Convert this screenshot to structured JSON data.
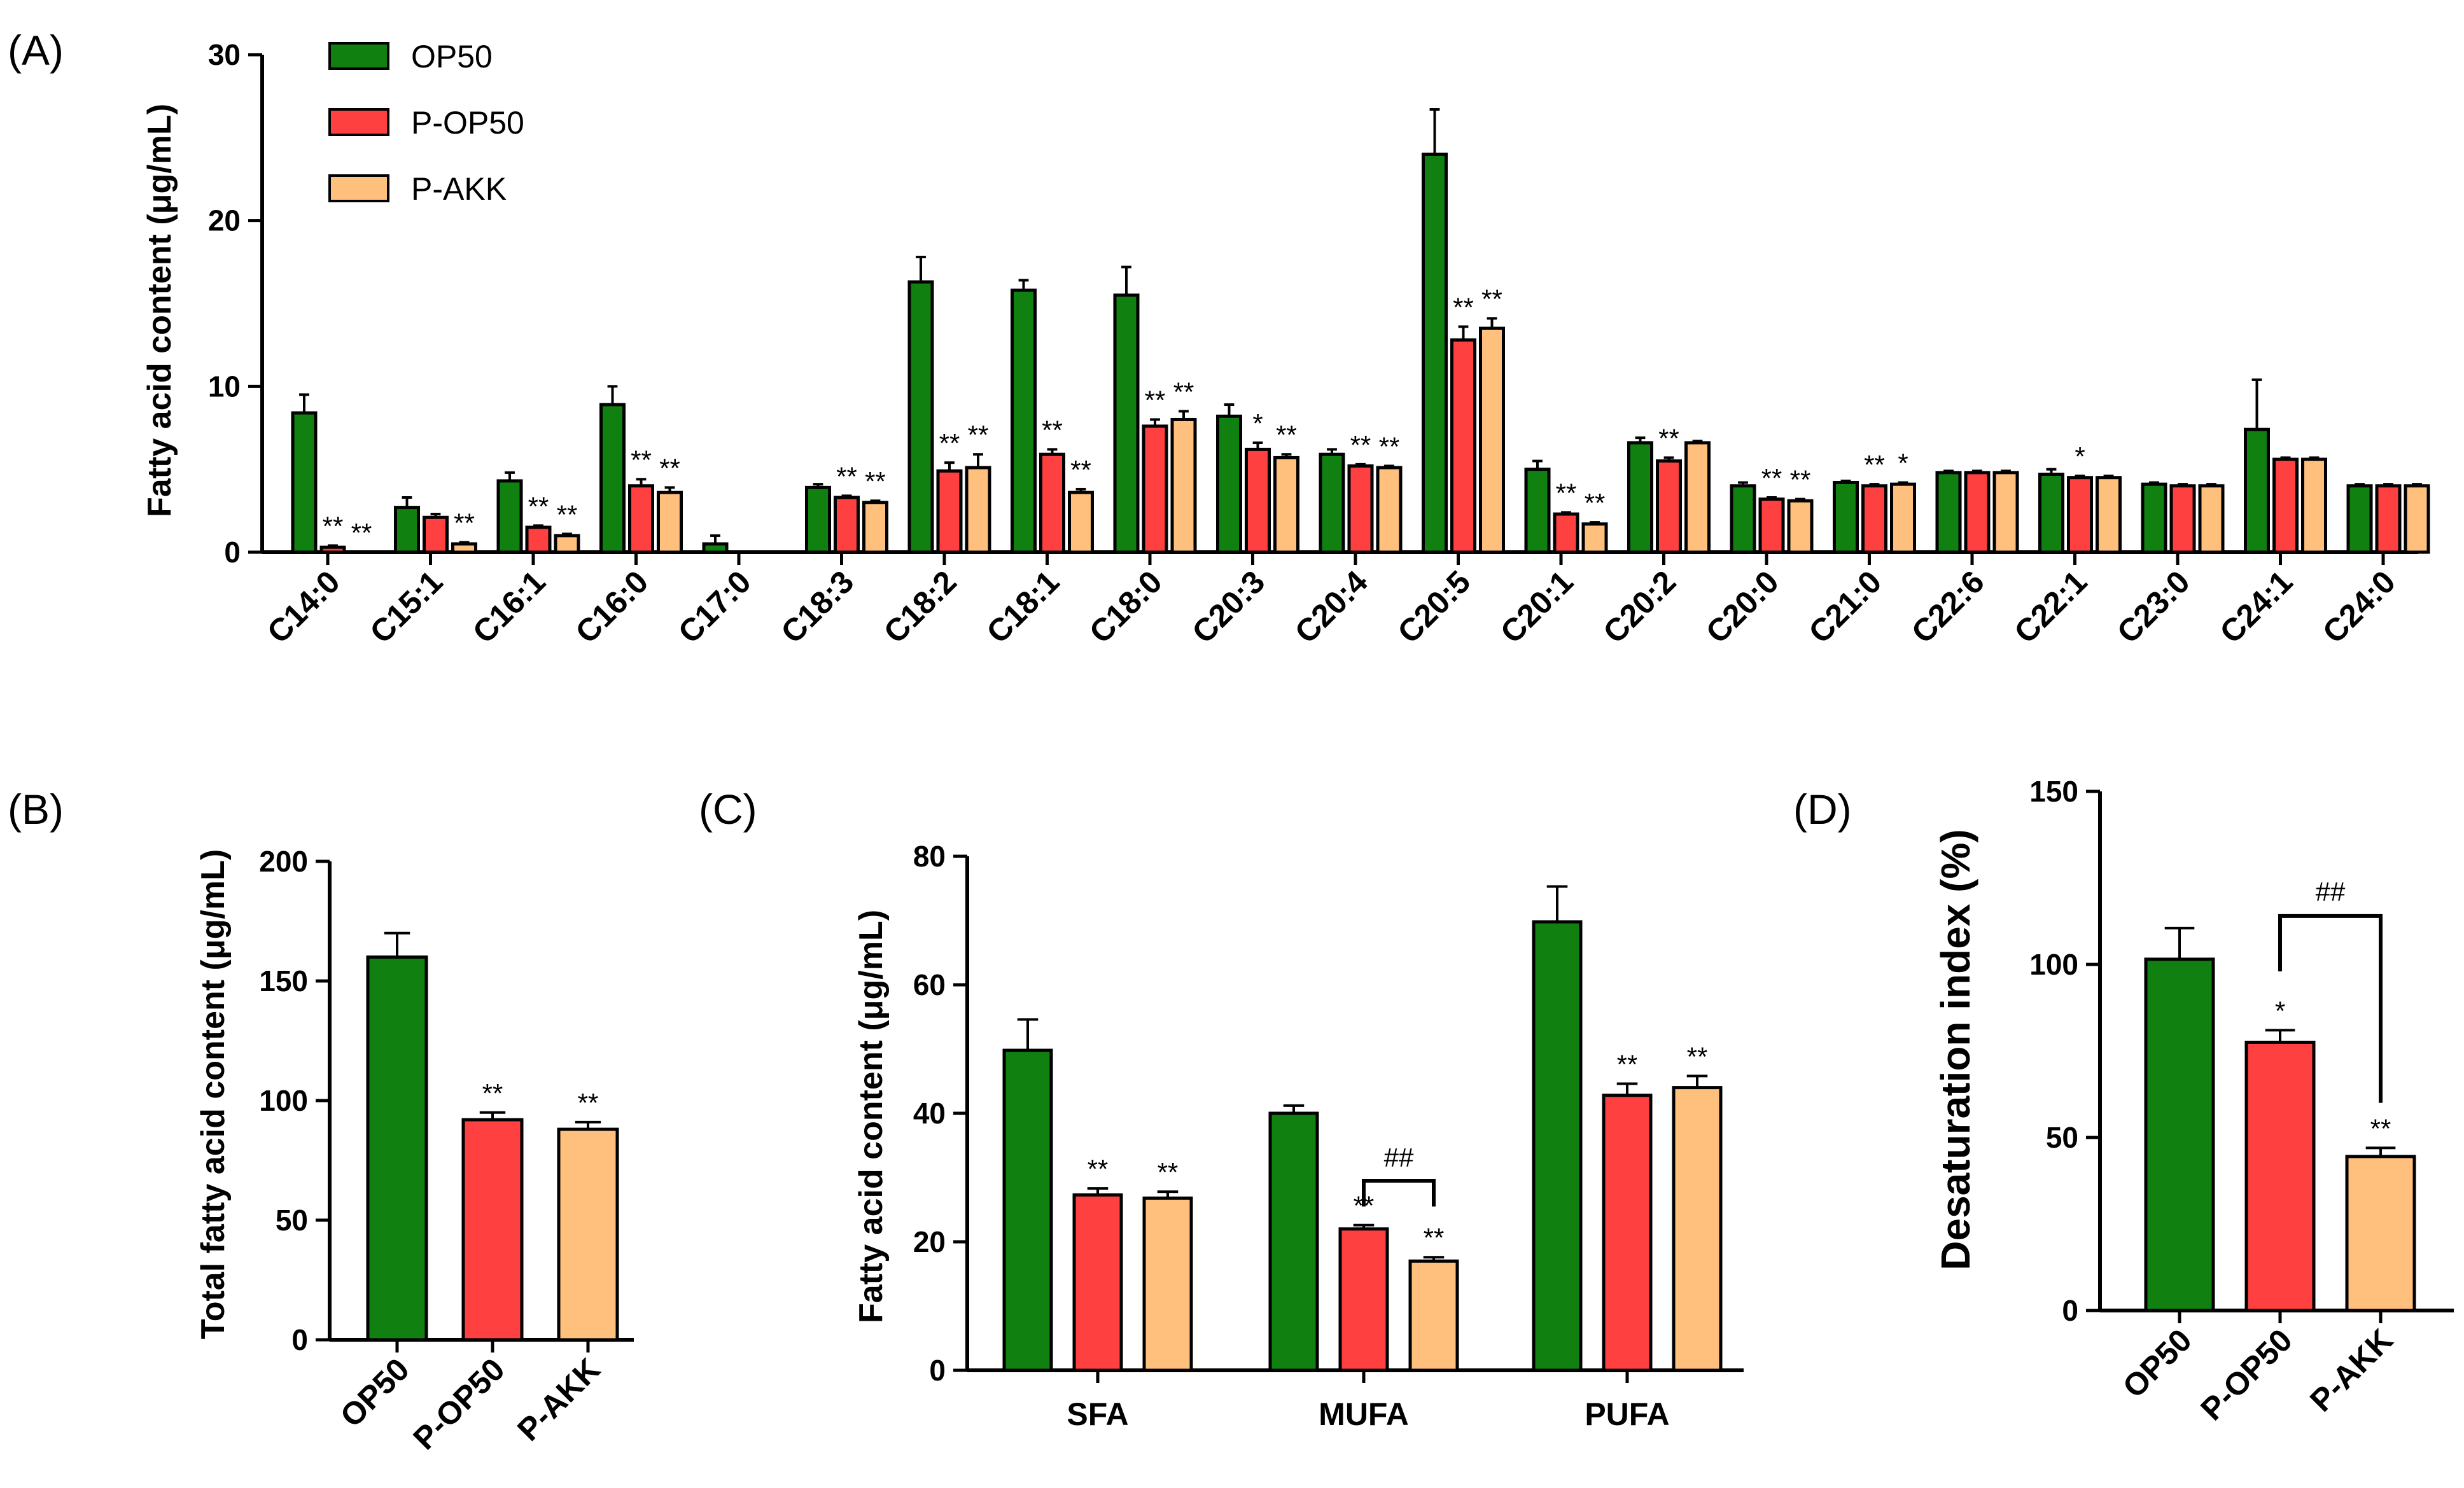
{
  "colors": {
    "OP50": "#108010",
    "P-OP50": "#ff4040",
    "P-AKK": "#ffc07e"
  },
  "legend": [
    "OP50",
    "P-OP50",
    "P-AKK"
  ],
  "chart_data": [
    {
      "panel": "(A)",
      "type": "bar",
      "ylabel": "Fatty acid content (μg/mL)",
      "ylim": [
        0,
        30
      ],
      "yticks": [
        0,
        10,
        20,
        30
      ],
      "categories": [
        "C14:0",
        "C15:1",
        "C16:1",
        "C16:0",
        "C17:0",
        "C18:3",
        "C18:2",
        "C18:1",
        "C18:0",
        "C20:3",
        "C20:4",
        "C20:5",
        "C20:1",
        "C20:2",
        "C20:0",
        "C21:0",
        "C22:6",
        "C22:1",
        "C23:0",
        "C24:1",
        "C24:0"
      ],
      "series": [
        {
          "name": "OP50",
          "values": [
            8.4,
            2.7,
            4.3,
            8.9,
            0.5,
            3.9,
            16.3,
            15.8,
            15.5,
            8.2,
            5.9,
            24.0,
            5.0,
            6.6,
            4.0,
            4.2,
            4.8,
            4.7,
            4.1,
            7.4,
            4.0
          ],
          "errors": [
            1.1,
            0.6,
            0.5,
            1.1,
            0.5,
            0.2,
            1.5,
            0.6,
            1.7,
            0.7,
            0.3,
            2.7,
            0.5,
            0.3,
            0.2,
            0.1,
            0.1,
            0.3,
            0.1,
            3.0,
            0.1
          ],
          "sig": [
            "",
            "",
            "",
            "",
            "",
            "",
            "",
            "",
            "",
            "",
            "",
            "",
            "",
            "",
            "",
            "",
            "",
            "",
            "",
            "",
            ""
          ]
        },
        {
          "name": "P-OP50",
          "values": [
            0.3,
            2.1,
            1.5,
            4.0,
            0,
            3.3,
            4.9,
            5.9,
            7.6,
            6.2,
            5.2,
            12.8,
            2.3,
            5.5,
            3.2,
            4.0,
            4.8,
            4.5,
            4.0,
            5.6,
            4.0
          ],
          "errors": [
            0.1,
            0.2,
            0.1,
            0.4,
            0,
            0.1,
            0.5,
            0.3,
            0.4,
            0.4,
            0.1,
            0.8,
            0.1,
            0.2,
            0.1,
            0.1,
            0.1,
            0.1,
            0.1,
            0.1,
            0.1
          ],
          "sig": [
            "**",
            "",
            "**",
            "**",
            "",
            "**",
            "**",
            "**",
            "**",
            "*",
            "**",
            "**",
            "**",
            "**",
            "**",
            "**",
            "",
            "*",
            "",
            "",
            ""
          ]
        },
        {
          "name": "P-AKK",
          "values": [
            0,
            0.5,
            1.0,
            3.6,
            0,
            3.0,
            5.1,
            3.6,
            8.0,
            5.7,
            5.1,
            13.5,
            1.7,
            6.6,
            3.1,
            4.1,
            4.8,
            4.5,
            4.0,
            5.6,
            4.0
          ],
          "errors": [
            0,
            0.1,
            0.1,
            0.3,
            0,
            0.1,
            0.8,
            0.2,
            0.5,
            0.2,
            0.1,
            0.6,
            0.1,
            0.1,
            0.1,
            0.1,
            0.1,
            0.1,
            0.1,
            0.1,
            0.1
          ],
          "sig": [
            "**",
            "**",
            "**",
            "**",
            "",
            "**",
            "**",
            "**",
            "**",
            "**",
            "**",
            "**",
            "**",
            "",
            "**",
            "*",
            "",
            "",
            "",
            "",
            ""
          ]
        }
      ]
    },
    {
      "panel": "(B)",
      "type": "bar",
      "ylabel": "Total fatty acid content (μg/mL)",
      "ylim": [
        0,
        200
      ],
      "yticks": [
        0,
        50,
        100,
        150,
        200
      ],
      "categories": [
        "OP50",
        "P-OP50",
        "P-AKK"
      ],
      "values": [
        160,
        92,
        88
      ],
      "errors": [
        10,
        3,
        3
      ],
      "sig": [
        "",
        "**",
        "**"
      ]
    },
    {
      "panel": "(C)",
      "type": "bar",
      "ylabel": "Fatty acid content (μg/mL)",
      "ylim": [
        0,
        80
      ],
      "yticks": [
        0,
        20,
        40,
        60,
        80
      ],
      "categories": [
        "SFA",
        "MUFA",
        "PUFA"
      ],
      "series": [
        {
          "name": "OP50",
          "values": [
            49.8,
            40.0,
            69.8
          ],
          "errors": [
            4.8,
            1.2,
            5.5
          ],
          "sig": [
            "",
            "",
            ""
          ]
        },
        {
          "name": "P-OP50",
          "values": [
            27.3,
            22.0,
            42.8
          ],
          "errors": [
            1.0,
            0.6,
            1.8
          ],
          "sig": [
            "**",
            "**",
            "**"
          ]
        },
        {
          "name": "P-AKK",
          "values": [
            26.8,
            17.0,
            44.0
          ],
          "errors": [
            1.0,
            0.6,
            1.8
          ],
          "sig": [
            "**",
            "**",
            "**"
          ]
        }
      ],
      "bracket": {
        "category": "MUFA",
        "from": "P-OP50",
        "to": "P-AKK",
        "label": "##"
      }
    },
    {
      "panel": "(D)",
      "type": "bar",
      "ylabel": "Desaturation index (%)",
      "ylim": [
        0,
        150
      ],
      "yticks": [
        0,
        50,
        100,
        150
      ],
      "categories": [
        "OP50",
        "P-OP50",
        "P-AKK"
      ],
      "values": [
        101.5,
        77.5,
        44.5
      ],
      "errors": [
        9,
        3.5,
        2.5
      ],
      "sig": [
        "",
        "*",
        "**"
      ],
      "bracket": {
        "from": "P-OP50",
        "to": "P-AKK",
        "label": "##"
      }
    }
  ]
}
